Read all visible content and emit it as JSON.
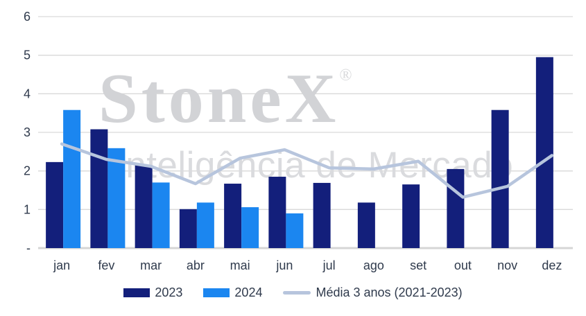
{
  "watermark": {
    "brand": "StoneX",
    "registered": "®",
    "subtitle": "Inteligência de Mercado"
  },
  "chart_data": {
    "type": "bar",
    "subtype": "clustered bars with overlay line",
    "title": "",
    "xlabel": "",
    "ylabel": "",
    "categories": [
      "jan",
      "fev",
      "mar",
      "abr",
      "mai",
      "jun",
      "jul",
      "ago",
      "set",
      "out",
      "nov",
      "dez"
    ],
    "series": [
      {
        "name": "2023",
        "type": "bar",
        "color": "#131f7b",
        "values": [
          2.23,
          3.08,
          2.15,
          1.01,
          1.67,
          1.85,
          1.69,
          1.18,
          1.65,
          2.05,
          3.58,
          4.95
        ]
      },
      {
        "name": "2024",
        "type": "bar",
        "color": "#1b86f0",
        "values": [
          3.58,
          2.59,
          1.7,
          1.18,
          1.06,
          0.9,
          null,
          null,
          null,
          null,
          null,
          null
        ]
      },
      {
        "name": "Média 3 anos (2021-2023)",
        "type": "line",
        "color": "#b7c5dd",
        "values": [
          2.7,
          2.3,
          2.12,
          1.67,
          2.33,
          2.55,
          2.08,
          2.05,
          2.25,
          1.32,
          1.6,
          2.4
        ]
      }
    ],
    "y_axis": {
      "min": 0,
      "max": 6,
      "tick_values": [
        6,
        5,
        4,
        3,
        2,
        1,
        0
      ],
      "tick_labels": [
        "6",
        "5",
        "4",
        "3",
        "2",
        "1",
        "-"
      ]
    },
    "grid": true,
    "legend_position": "bottom",
    "colors": {
      "gridline": "#d9d9d9",
      "baseline": "#d6d6d6",
      "axis_text": "#2f3a4c"
    }
  }
}
